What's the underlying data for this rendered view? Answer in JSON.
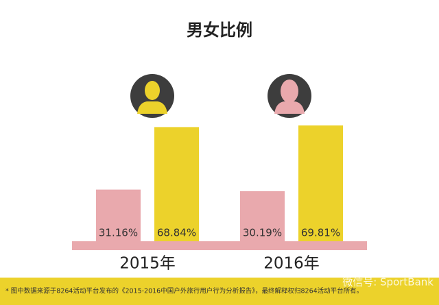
{
  "chart_data": {
    "type": "bar",
    "title": "男女比例",
    "categories": [
      "2015年",
      "2016年"
    ],
    "series": [
      {
        "color": "#e9a9ad",
        "values": [
          31.16,
          30.19
        ],
        "value_labels": [
          "31.16%",
          "30.19%"
        ]
      },
      {
        "color": "#ecd22b",
        "values": [
          68.84,
          69.81
        ],
        "value_labels": [
          "68.84%",
          "69.81%"
        ]
      }
    ],
    "footnote": "* 图中数据来源于8264活动平台发布的《2015-2016中国户外旅行用户行为分析报告》，最终解释权归8264活动平台所有。",
    "watermark": "微信号: SportBank"
  }
}
